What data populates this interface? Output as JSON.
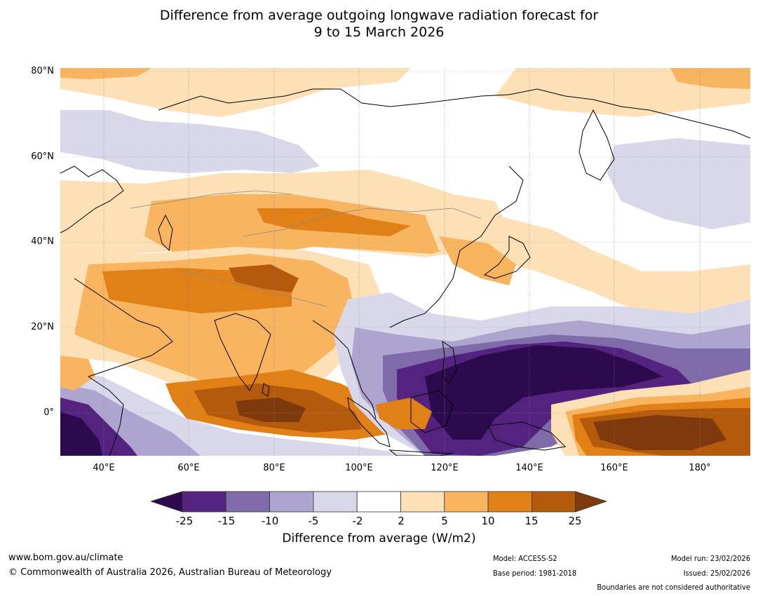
{
  "title_line1": "Difference from average outgoing longwave radiation forecast for",
  "title_line2": "9 to 15 March 2026",
  "map": {
    "lat_labels": [
      "80°N",
      "60°N",
      "40°N",
      "20°N",
      "0°"
    ],
    "lon_labels": [
      "40°E",
      "60°E",
      "80°E",
      "100°E",
      "120°E",
      "140°E",
      "160°E",
      "180°"
    ],
    "extent": {
      "lon_min": 30,
      "lon_max": 192,
      "lat_min": -10,
      "lat_max": 80
    }
  },
  "colorbar": {
    "ticks": [
      "-25",
      "-15",
      "-10",
      "-5",
      "-2",
      "2",
      "5",
      "10",
      "15",
      "25"
    ],
    "label": "Difference from average (W/m2)",
    "colors": {
      "lt_-25": "#2d0a4e",
      "-25_-15": "#54237f",
      "-15_-10": "#7f6ba9",
      "-10_-5": "#ada5cf",
      "-5_-2": "#d8d8ea",
      "-2_2": "#ffffff",
      "2_5": "#fde0b5",
      "5_10": "#f8b45f",
      "10_15": "#e08016",
      "15_25": "#b45a0c",
      "gt_25": "#7e3a0c"
    }
  },
  "footer": {
    "website": "www.bom.gov.au/climate",
    "copyright": "© Commonwealth of Australia 2026, Australian Bureau of Meteorology",
    "model": "Model: ACCESS-S2",
    "base_period": "Base period: 1981-2018",
    "model_run": "Model run: 23/02/2026",
    "issued": "Issued: 25/02/2026",
    "disclaimer": "Boundaries are not considered authoritative"
  }
}
